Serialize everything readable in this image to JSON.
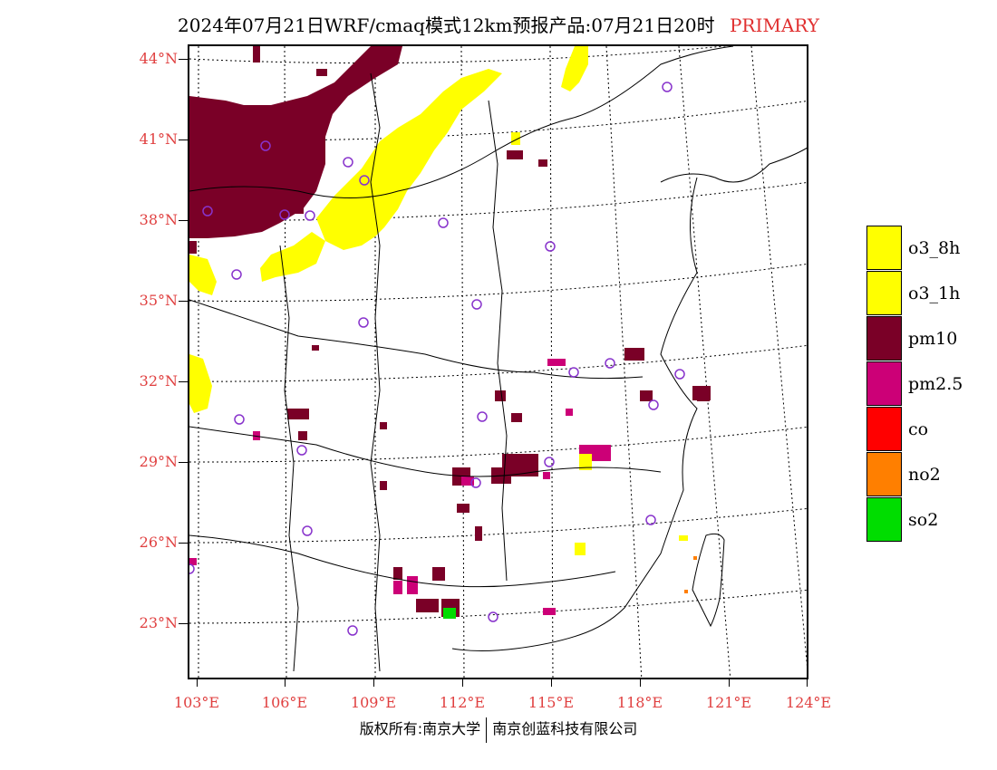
{
  "title": {
    "text": "2024年07月21日WRF/cmaq模式12km预报产品:07月21日20时",
    "tag": "PRIMARY",
    "tag_color": "#e03030"
  },
  "axes": {
    "lat_labels": [
      "44°N",
      "41°N",
      "38°N",
      "35°N",
      "32°N",
      "29°N",
      "26°N",
      "23°N"
    ],
    "lon_labels": [
      "103°E",
      "106°E",
      "109°E",
      "112°E",
      "115°E",
      "118°E",
      "121°E",
      "124°E"
    ],
    "label_color": "#e04040"
  },
  "legend": [
    {
      "label": "o3_8h",
      "color": "#ffff00"
    },
    {
      "label": "o3_1h",
      "color": "#ffff00"
    },
    {
      "label": "pm10",
      "color": "#7a0027"
    },
    {
      "label": "pm2.5",
      "color": "#cc0077"
    },
    {
      "label": "co",
      "color": "#ff0000"
    },
    {
      "label": "no2",
      "color": "#ff7f00"
    },
    {
      "label": "so2",
      "color": "#00dd00"
    }
  ],
  "footer": {
    "left": "版权所有:南京大学",
    "right": "南京创蓝科技有限公司"
  },
  "map": {
    "station_marker_color": "#8833cc",
    "coastline_color": "#000000",
    "grid_style": "dotted"
  }
}
